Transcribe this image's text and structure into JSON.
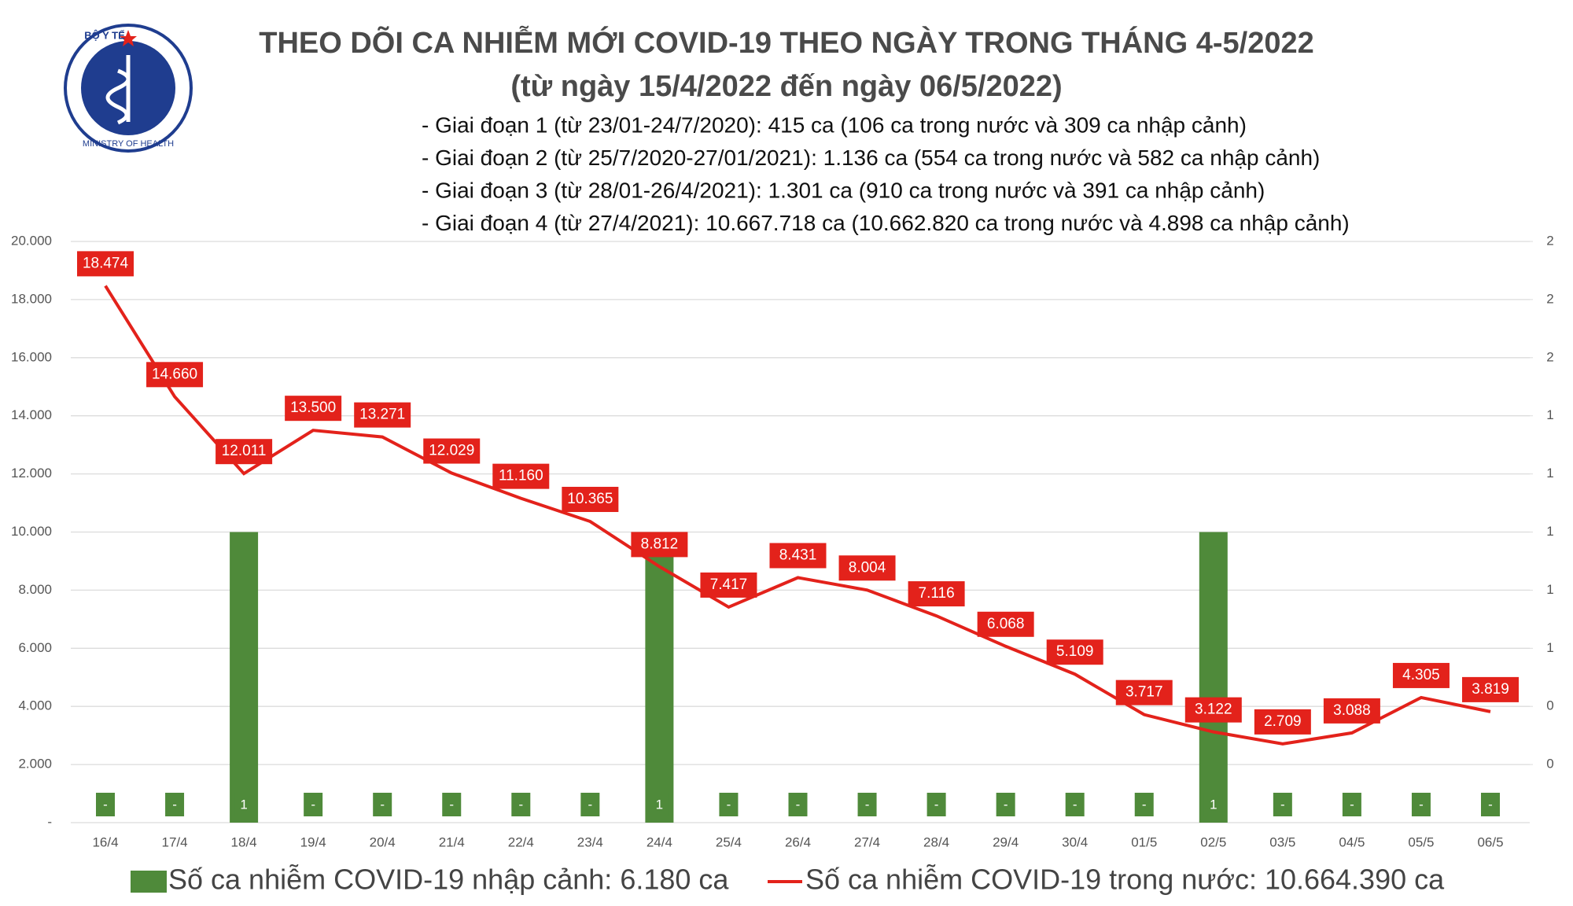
{
  "logo": {
    "top": "BỘ Y TẾ",
    "bottom": "MINISTRY OF HEALTH"
  },
  "chart_data": {
    "type": "bar-line",
    "title": "THEO DÕI CA NHIỄM MỚI COVID-19 THEO NGÀY TRONG THÁNG 4-5/2022",
    "subtitle": "(từ ngày 15/4/2022 đến ngày 06/5/2022)",
    "notes": [
      "- Giai đoạn 1 (từ 23/01-24/7/2020): 415 ca (106 ca trong nước và 309 ca nhập cảnh)",
      "- Giai đoạn 2 (từ 25/7/2020-27/01/2021): 1.136 ca (554 ca trong nước và 582 ca nhập cảnh)",
      "- Giai đoạn 3 (từ 28/01-26/4/2021): 1.301 ca (910 ca trong nước và 391 ca nhập cảnh)",
      "- Giai đoạn 4 (từ 27/4/2021): 10.667.718 ca (10.662.820 ca trong nước và 4.898 ca nhập cảnh)"
    ],
    "categories": [
      "16/4",
      "17/4",
      "18/4",
      "19/4",
      "20/4",
      "21/4",
      "22/4",
      "23/4",
      "24/4",
      "25/4",
      "26/4",
      "27/4",
      "28/4",
      "29/4",
      "30/4",
      "01/5",
      "02/5",
      "03/5",
      "04/5",
      "05/5",
      "06/5"
    ],
    "series": [
      {
        "name": "Số ca nhiễm COVID-19 nhập cảnh: 6.180 ca",
        "type": "bar",
        "axis": "y2",
        "color": "#4f8a3a",
        "values": [
          0,
          0,
          1,
          0,
          0,
          0,
          0,
          0,
          1,
          0,
          0,
          0,
          0,
          0,
          0,
          0,
          1,
          0,
          0,
          0,
          0
        ],
        "value_labels": [
          "-",
          "-",
          "1",
          "-",
          "-",
          "-",
          "-",
          "-",
          "1",
          "-",
          "-",
          "-",
          "-",
          "-",
          "-",
          "-",
          "1",
          "-",
          "-",
          "-",
          "-"
        ]
      },
      {
        "name": "Số ca nhiễm COVID-19 trong nước: 10.664.390 ca",
        "type": "line",
        "color": "#e3221b",
        "values": [
          18474,
          14660,
          12011,
          13500,
          13271,
          12029,
          11160,
          10365,
          8812,
          7417,
          8431,
          8004,
          7116,
          6068,
          5109,
          3717,
          3122,
          2709,
          3088,
          4305,
          3819
        ],
        "value_labels": [
          "18.474",
          "14.660",
          "12.011",
          "13.500",
          "13.271",
          "12.029",
          "11.160",
          "10.365",
          "8.812",
          "7.417",
          "8.431",
          "8.004",
          "7.116",
          "6.068",
          "5.109",
          "3.717",
          "3.122",
          "2.709",
          "3.088",
          "4.305",
          "3.819"
        ]
      }
    ],
    "ylim": [
      0,
      20000
    ],
    "yticks": [
      {
        "value": 0,
        "label": "-"
      },
      {
        "value": 2000,
        "label": "2.000"
      },
      {
        "value": 4000,
        "label": "4.000"
      },
      {
        "value": 6000,
        "label": "6.000"
      },
      {
        "value": 8000,
        "label": "8.000"
      },
      {
        "value": 10000,
        "label": "10.000"
      },
      {
        "value": 12000,
        "label": "12.000"
      },
      {
        "value": 14000,
        "label": "14.000"
      },
      {
        "value": 16000,
        "label": "16.000"
      },
      {
        "value": 18000,
        "label": "18.000"
      },
      {
        "value": 20000,
        "label": "20.000"
      }
    ],
    "y2lim": [
      0,
      2
    ],
    "y2ticks": [
      {
        "value": 0.2,
        "label": "0"
      },
      {
        "value": 0.4,
        "label": "0"
      },
      {
        "value": 0.6,
        "label": "1"
      },
      {
        "value": 0.8,
        "label": "1"
      },
      {
        "value": 1,
        "label": "1"
      },
      {
        "value": 1.2,
        "label": "1"
      },
      {
        "value": 1.4,
        "label": "1"
      },
      {
        "value": 1.6,
        "label": "2"
      },
      {
        "value": 1.8,
        "label": "2"
      },
      {
        "value": 2,
        "label": "2"
      }
    ],
    "grid": true
  }
}
